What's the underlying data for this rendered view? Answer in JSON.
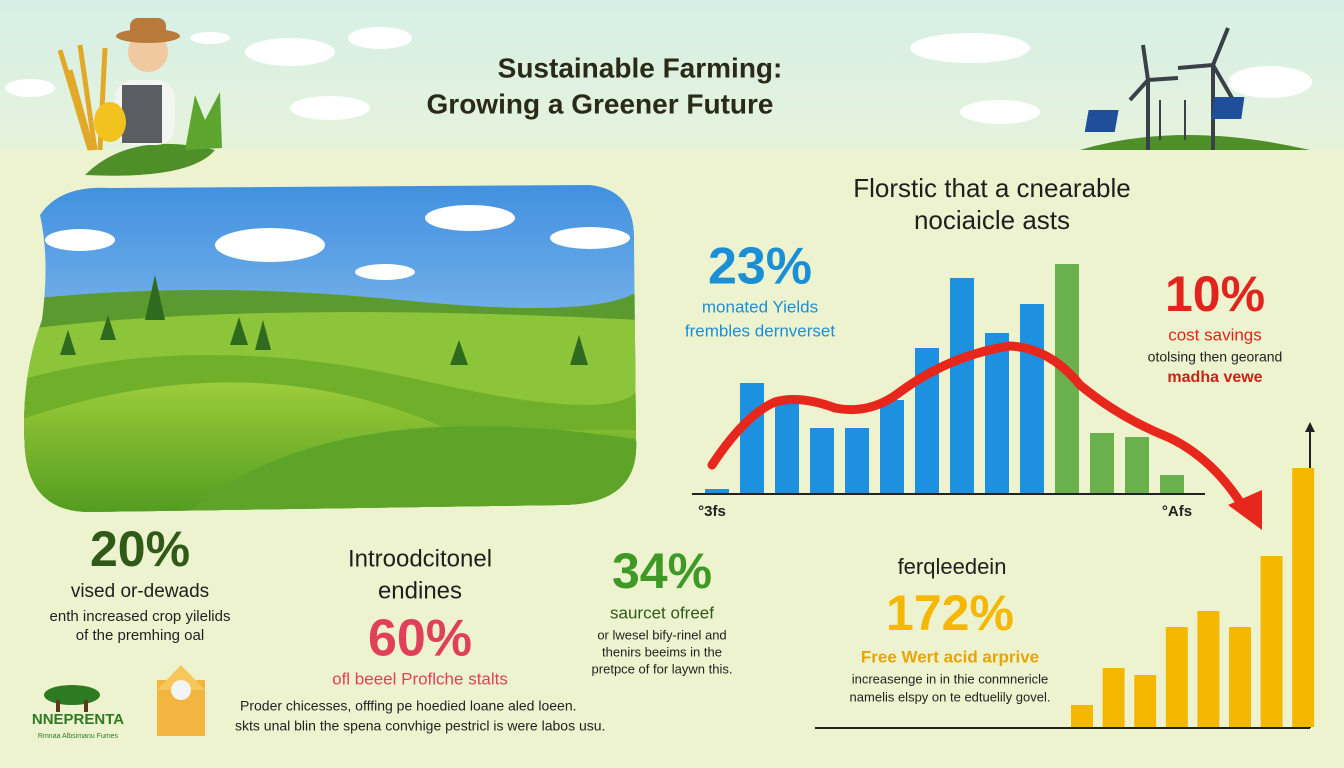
{
  "header": {
    "title_lines": [
      "Sustainable Farming:",
      "Growing a Greener Future"
    ]
  },
  "main_chart": {
    "title_lines": [
      "Florstic that a cnearable",
      "nociaicle asts"
    ],
    "x_labels": [
      "°3fs",
      "°Afs"
    ],
    "values": [
      4,
      110,
      90,
      65,
      65,
      93,
      145,
      215,
      160,
      189,
      229,
      60,
      56,
      18
    ],
    "colors": [
      "#1e90e0",
      "#1e90e0",
      "#1e90e0",
      "#1e90e0",
      "#1e90e0",
      "#1e90e0",
      "#1e90e0",
      "#1e90e0",
      "#1e90e0",
      "#1e90e0",
      "#6ab04c",
      "#6ab04c",
      "#6ab04c",
      "#6ab04c"
    ]
  },
  "growth_chart": {
    "values": [
      22,
      59,
      52,
      100,
      116,
      100,
      171,
      259
    ],
    "color": "#f5b800"
  },
  "stats": [
    {
      "value": "23%",
      "lines": [
        "monated Yields",
        "frembles dernverset"
      ]
    },
    {
      "value": "10%",
      "lines": [
        "cost savings",
        "otolsing then georand",
        "madha vewe"
      ]
    },
    {
      "value": "20%",
      "lines": [
        "vised or-dewads",
        "enth increased crop yilelids",
        "of the premhing oal"
      ]
    },
    {
      "heading_lines": [
        "Introodcitonel",
        "endines"
      ],
      "value": "60%",
      "lines": [
        "ofl beeel Proflche stalts"
      ]
    },
    {
      "value": "34%",
      "lines": [
        "saurcet ofreef",
        "or lwesel bify-rinel and",
        "thenirs beeims in the",
        "pretpce of for laywn this."
      ]
    },
    {
      "heading_lines": [
        "ferqleedein"
      ],
      "value": "172%",
      "lines": [
        "Free Wert acid arprive",
        "increasenge in in thie conmnericle",
        "namelis elspy on te edtuelily govel."
      ]
    }
  ],
  "logo": {
    "name": "NNEPRENTA",
    "tagline": "Rmnaa Albsimanu Fumes"
  },
  "footer": {
    "lines": [
      "Proder chicesses, offfing pe hoedied loane aled loeen.",
      "skts unal blin the spena convhige pestricl is were labos usu."
    ]
  }
}
